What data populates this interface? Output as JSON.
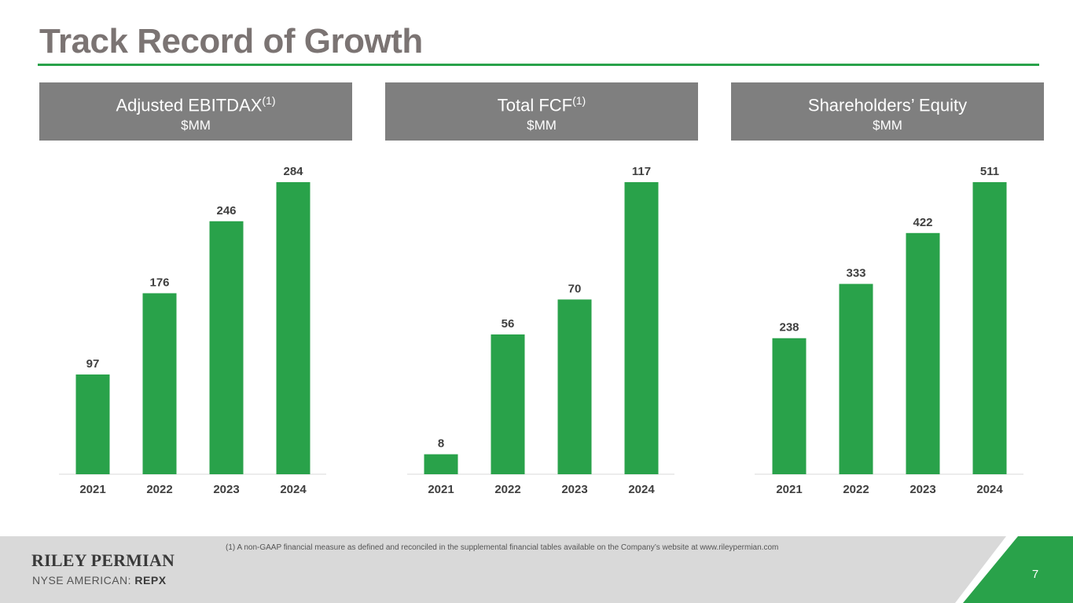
{
  "title": "Track Record of Growth",
  "colors": {
    "accent": "#29a24a",
    "header_bg": "#7f7f7f",
    "title_text": "#7b7473",
    "footer_bg": "#d9d9d9"
  },
  "headers": [
    {
      "title": "Adjusted EBITDAX",
      "sup": "(1)",
      "unit": "$MM"
    },
    {
      "title": "Total FCF",
      "sup": "(1)",
      "unit": "$MM"
    },
    {
      "title": "Shareholders’ Equity",
      "sup": "",
      "unit": "$MM"
    }
  ],
  "chart_data": [
    {
      "type": "bar",
      "title": "Adjusted EBITDAX(1)",
      "ylabel": "$MM",
      "categories": [
        "2021",
        "2022",
        "2023",
        "2024"
      ],
      "values": [
        97,
        176,
        246,
        284
      ],
      "ylim": [
        0,
        300
      ]
    },
    {
      "type": "bar",
      "title": "Total FCF(1)",
      "ylabel": "$MM",
      "categories": [
        "2021",
        "2022",
        "2023",
        "2024"
      ],
      "values": [
        8,
        56,
        70,
        117
      ],
      "ylim": [
        0,
        120
      ]
    },
    {
      "type": "bar",
      "title": "Shareholders’ Equity",
      "ylabel": "$MM",
      "categories": [
        "2021",
        "2022",
        "2023",
        "2024"
      ],
      "values": [
        238,
        333,
        422,
        511
      ],
      "ylim": [
        0,
        520
      ]
    }
  ],
  "footer": {
    "company": "RILEY PERMIAN",
    "exchange": "NYSE AMERICAN:",
    "ticker": "REPX",
    "footnote": "(1)  A non-GAAP financial measure as defined and reconciled in the supplemental financial tables available on the Company’s website at www.rileypermian.com",
    "page_number": "7"
  }
}
